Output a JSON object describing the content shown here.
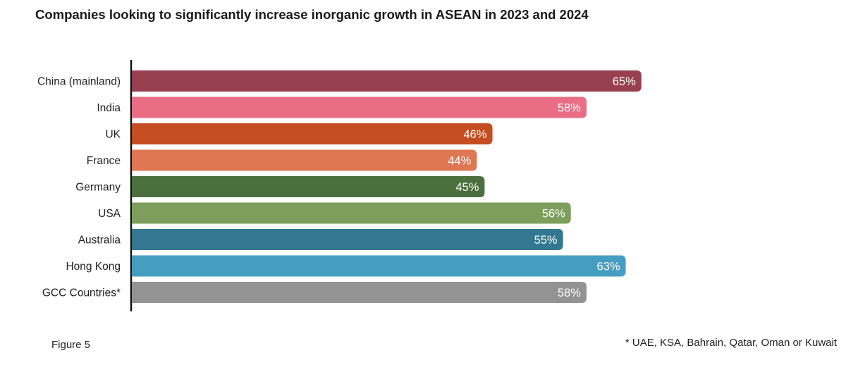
{
  "chart_data": {
    "type": "bar",
    "orientation": "horizontal",
    "title": "Companies looking to significantly increase inorganic growth in ASEAN in 2023 and 2024",
    "categories": [
      "China (mainland)",
      "India",
      "UK",
      "France",
      "Germany",
      "USA",
      "Australia",
      "Hong Kong",
      "GCC Countries*"
    ],
    "values": [
      65,
      58,
      46,
      44,
      45,
      56,
      55,
      63,
      58
    ],
    "labels": [
      "65%",
      "58%",
      "46%",
      "44%",
      "45%",
      "56%",
      "55%",
      "63%",
      "58%"
    ],
    "colors": [
      "#98404f",
      "#e96d84",
      "#c54d22",
      "#e07753",
      "#4b703d",
      "#7d9e5c",
      "#337791",
      "#469dc2",
      "#939393"
    ],
    "unit": "%",
    "xlim": [
      0,
      65
    ],
    "grid": false,
    "legend": "none"
  },
  "figure_label": "Figure 5",
  "footnote": "* UAE, KSA, Bahrain, Qatar, Oman or Kuwait"
}
